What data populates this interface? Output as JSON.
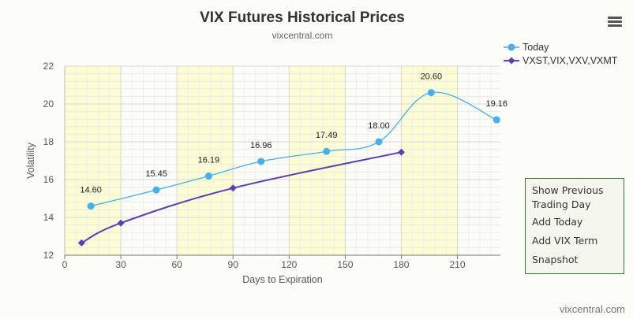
{
  "chart_data": {
    "type": "line",
    "title": "VIX Futures Historical Prices",
    "subtitle": "vixcentral.com",
    "xlabel": "Days to Expiration",
    "ylabel": "Volatility",
    "xlim": [
      0,
      233
    ],
    "ylim": [
      12,
      22
    ],
    "xticks": [
      0,
      30,
      60,
      90,
      120,
      150,
      180,
      210
    ],
    "yticks": [
      12,
      14,
      16,
      18,
      20,
      22
    ],
    "xtick_labels": [
      "0",
      "30",
      "60",
      "90",
      "120",
      "150",
      "180",
      "210"
    ],
    "ytick_labels": [
      "12",
      "14",
      "16",
      "18",
      "20",
      "22"
    ],
    "shaded_bands": [
      [
        0,
        30
      ],
      [
        60,
        90
      ],
      [
        120,
        150
      ],
      [
        180,
        210
      ]
    ],
    "grid": true,
    "legend_position": "top-right",
    "series": [
      {
        "name": "Today",
        "color": "#3fb2ef",
        "marker": "circle",
        "smooth": true,
        "x": [
          14,
          49,
          77,
          105,
          140,
          168,
          196,
          231
        ],
        "y": [
          14.6,
          15.45,
          16.19,
          16.96,
          17.49,
          18.0,
          20.6,
          19.16
        ],
        "labels": [
          "14.60",
          "15.45",
          "16.19",
          "16.96",
          "17.49",
          "18.00",
          "20.60",
          "19.16"
        ]
      },
      {
        "name": "VXST,VIX,VXV,VXMT",
        "color": "#5b3fb5",
        "marker": "diamond",
        "smooth": true,
        "x": [
          9,
          30,
          90,
          180
        ],
        "y": [
          12.65,
          13.7,
          15.55,
          17.45
        ]
      }
    ]
  },
  "menu": {
    "items": [
      "Show Previous Trading Day",
      "Add Today",
      "Add VIX Term",
      "Snapshot"
    ]
  },
  "watermark": "vixcentral.com"
}
